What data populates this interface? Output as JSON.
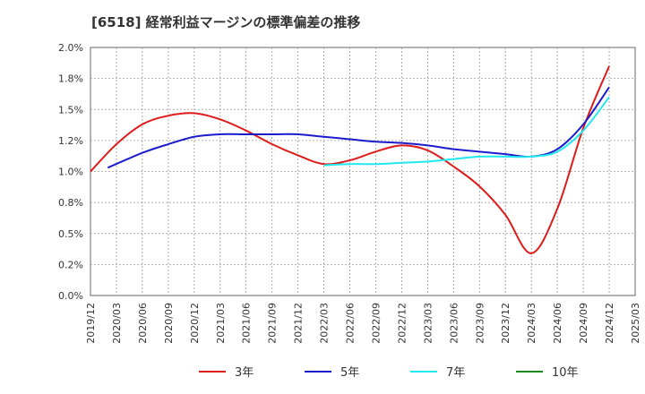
{
  "chart_data": {
    "type": "line",
    "title": "[6518]  経常利益マージンの標準偏差の推移",
    "xlabel": "",
    "ylabel": "",
    "ylim": [
      0,
      2.0
    ],
    "grid": true,
    "legend_position": "bottom",
    "x_ticks": [
      "2019/12",
      "2020/03",
      "2020/06",
      "2020/09",
      "2020/12",
      "2021/03",
      "2021/06",
      "2021/09",
      "2021/12",
      "2022/03",
      "2022/06",
      "2022/09",
      "2022/12",
      "2023/03",
      "2023/06",
      "2023/09",
      "2023/12",
      "2024/03",
      "2024/06",
      "2024/09",
      "2024/12",
      "2025/03"
    ],
    "y_ticks": [
      "0.0%",
      "0.2%",
      "0.5%",
      "0.8%",
      "1.0%",
      "1.2%",
      "1.5%",
      "1.8%",
      "2.0%"
    ],
    "series": [
      {
        "name": "3年",
        "color": "#dd1c1c",
        "points": [
          [
            "2019/12",
            1.0
          ],
          [
            "2020/03",
            1.22
          ],
          [
            "2020/06",
            1.38
          ],
          [
            "2020/09",
            1.45
          ],
          [
            "2020/12",
            1.47
          ],
          [
            "2021/03",
            1.42
          ],
          [
            "2021/06",
            1.33
          ],
          [
            "2021/09",
            1.22
          ],
          [
            "2021/12",
            1.13
          ],
          [
            "2022/03",
            1.06
          ],
          [
            "2022/06",
            1.09
          ],
          [
            "2022/09",
            1.16
          ],
          [
            "2022/12",
            1.21
          ],
          [
            "2023/03",
            1.17
          ],
          [
            "2023/06",
            1.04
          ],
          [
            "2023/09",
            0.88
          ],
          [
            "2023/12",
            0.65
          ],
          [
            "2024/03",
            0.34
          ],
          [
            "2024/06",
            0.7
          ],
          [
            "2024/09",
            1.35
          ],
          [
            "2024/12",
            1.85
          ]
        ]
      },
      {
        "name": "5年",
        "color": "#1c1ccc",
        "points": [
          [
            "2020/02",
            1.03
          ],
          [
            "2020/06",
            1.15
          ],
          [
            "2020/09",
            1.22
          ],
          [
            "2020/12",
            1.28
          ],
          [
            "2021/03",
            1.3
          ],
          [
            "2021/06",
            1.3
          ],
          [
            "2021/09",
            1.3
          ],
          [
            "2021/12",
            1.3
          ],
          [
            "2022/03",
            1.28
          ],
          [
            "2022/06",
            1.26
          ],
          [
            "2022/09",
            1.24
          ],
          [
            "2022/12",
            1.23
          ],
          [
            "2023/03",
            1.21
          ],
          [
            "2023/06",
            1.18
          ],
          [
            "2023/09",
            1.16
          ],
          [
            "2023/12",
            1.14
          ],
          [
            "2024/03",
            1.12
          ],
          [
            "2024/06",
            1.18
          ],
          [
            "2024/09",
            1.38
          ],
          [
            "2024/12",
            1.68
          ]
        ]
      },
      {
        "name": "7年",
        "color": "#22e8f0",
        "points": [
          [
            "2022/03",
            1.05
          ],
          [
            "2022/06",
            1.06
          ],
          [
            "2022/09",
            1.06
          ],
          [
            "2022/12",
            1.07
          ],
          [
            "2023/03",
            1.08
          ],
          [
            "2023/06",
            1.1
          ],
          [
            "2023/09",
            1.12
          ],
          [
            "2023/12",
            1.12
          ],
          [
            "2024/03",
            1.12
          ],
          [
            "2024/06",
            1.16
          ],
          [
            "2024/09",
            1.33
          ],
          [
            "2024/12",
            1.6
          ]
        ]
      },
      {
        "name": "10年",
        "color": "#1a8a1a",
        "points": []
      }
    ]
  }
}
